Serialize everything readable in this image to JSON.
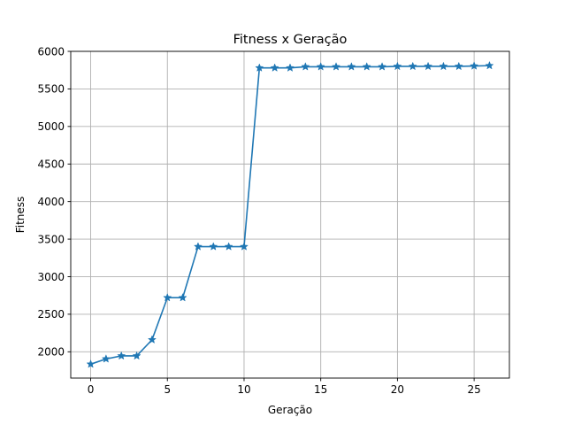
{
  "chart_data": {
    "type": "line",
    "title": "Fitness x Geração",
    "xlabel": "Geração",
    "ylabel": "Fitness",
    "xlim": [
      -1.3,
      27.3
    ],
    "ylim": [
      1650,
      6000
    ],
    "xticks": [
      0,
      5,
      10,
      15,
      20,
      25
    ],
    "yticks": [
      2000,
      2500,
      3000,
      3500,
      4000,
      4500,
      5000,
      5500,
      6000
    ],
    "grid": true,
    "marker": "star",
    "color": "#1f77b4",
    "series": [
      {
        "x": [
          0,
          1,
          2,
          3,
          4,
          5,
          6,
          7,
          8,
          9,
          10,
          11,
          12,
          13,
          14,
          15,
          16,
          17,
          18,
          19,
          20,
          21,
          22,
          23,
          24,
          25,
          26
        ],
        "values": [
          1835,
          1905,
          1945,
          1945,
          2160,
          2720,
          2720,
          3400,
          3400,
          3400,
          3400,
          5780,
          5780,
          5780,
          5795,
          5795,
          5795,
          5795,
          5795,
          5795,
          5800,
          5800,
          5800,
          5800,
          5800,
          5805,
          5810
        ]
      }
    ]
  }
}
